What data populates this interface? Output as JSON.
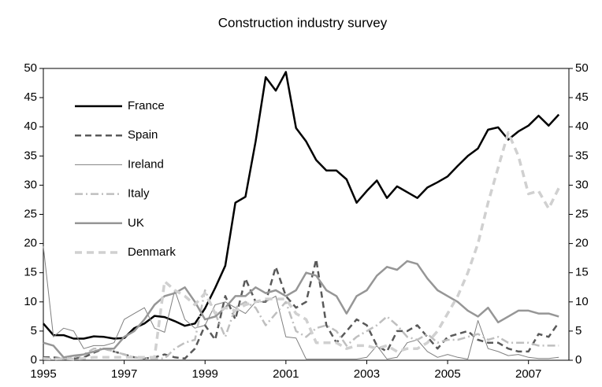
{
  "chart_data": {
    "type": "line",
    "title": "Construction industry survey",
    "x": [
      1995,
      1995.25,
      1995.5,
      1995.75,
      1996,
      1996.25,
      1996.5,
      1996.75,
      1997,
      1997.25,
      1997.5,
      1997.75,
      1998,
      1998.25,
      1998.5,
      1998.75,
      1999,
      1999.25,
      1999.5,
      1999.75,
      2000,
      2000.25,
      2000.5,
      2000.75,
      2001,
      2001.25,
      2001.5,
      2001.75,
      2002,
      2002.25,
      2002.5,
      2002.75,
      2003,
      2003.25,
      2003.5,
      2003.75,
      2004,
      2004.25,
      2004.5,
      2004.75,
      2005,
      2005.25,
      2005.5,
      2005.75,
      2006,
      2006.25,
      2006.5,
      2006.75,
      2007,
      2007.25,
      2007.5,
      2007.75
    ],
    "series": [
      {
        "name": "France",
        "color": "#000000",
        "width": 2.5,
        "dash": "none",
        "values": [
          6.3,
          4.3,
          4.3,
          3.7,
          3.7,
          4.1,
          4.0,
          3.7,
          3.8,
          5.5,
          6.3,
          7.6,
          7.4,
          6.7,
          5.9,
          6.3,
          8.9,
          12.4,
          16.2,
          27,
          28,
          37.5,
          48.5,
          46.2,
          49.4,
          39.8,
          37.5,
          34.3,
          32.5,
          32.5,
          31,
          27,
          29,
          30.8,
          27.8,
          29.8,
          28.8,
          27.8,
          29.6,
          30.5,
          31.5,
          33.3,
          35,
          36.3,
          39.5,
          39.9,
          37.8,
          39.2,
          40.2,
          41.9,
          40.2,
          42.1
        ]
      },
      {
        "name": "Spain",
        "color": "#595959",
        "width": 2.5,
        "dash": "8,5",
        "values": [
          0.5,
          0.5,
          0.3,
          0.3,
          0.5,
          1.3,
          2,
          1.5,
          1,
          0.5,
          0.3,
          0.5,
          1,
          0.5,
          0.3,
          2,
          6,
          3.5,
          11,
          7,
          14,
          10,
          10,
          16,
          11,
          9,
          10,
          17.3,
          6,
          3,
          5,
          7,
          6,
          2.5,
          1.5,
          5,
          5,
          6,
          4,
          2,
          4,
          4.5,
          5,
          3.5,
          3,
          3,
          2,
          1.5,
          1.5,
          4.5,
          4,
          6.5
        ]
      },
      {
        "name": "Ireland",
        "color": "#7f7f7f",
        "width": 1,
        "dash": "none",
        "values": [
          19.5,
          4,
          5.5,
          5,
          2,
          2.5,
          2.5,
          3,
          7,
          8,
          9,
          5.5,
          4.8,
          12,
          7,
          5.5,
          6,
          9.5,
          10,
          9,
          8,
          10,
          10,
          11,
          4,
          3.8,
          0.2,
          0.2,
          0.2,
          0.2,
          0.2,
          0.2,
          0.5,
          2.5,
          0.2,
          0.5,
          3,
          3.5,
          1.5,
          0.5,
          1,
          0.5,
          0.2,
          6.8,
          2,
          1.5,
          0.8,
          1,
          0.5,
          0.3,
          0.3,
          0.5
        ]
      },
      {
        "name": "Italy",
        "color": "#bfbfbf",
        "width": 2.5,
        "dash": "10,4,2,4",
        "values": [
          0.2,
          0.2,
          0.2,
          0.5,
          1,
          2,
          2,
          1.5,
          1,
          0.5,
          0.3,
          0.3,
          0.3,
          2,
          3,
          3.5,
          12,
          8,
          4,
          9,
          10,
          9,
          6,
          8,
          10,
          5,
          4,
          5.5,
          6,
          5,
          2.5,
          4,
          5,
          6,
          7.5,
          6,
          4,
          3.5,
          4.5,
          3,
          3.5,
          3.5,
          4,
          4.5,
          3.5,
          4,
          3,
          3,
          3,
          2.5,
          2.5,
          2.5
        ]
      },
      {
        "name": "UK",
        "color": "#969696",
        "width": 2.5,
        "dash": "none",
        "values": [
          3,
          2.5,
          0.5,
          0.8,
          1,
          1.5,
          2,
          2,
          4,
          5,
          7,
          9.5,
          11,
          11.5,
          12.5,
          10,
          7,
          7.5,
          9,
          11,
          11,
          12.5,
          11.5,
          12,
          11,
          12,
          15,
          14.5,
          12,
          11,
          8,
          11,
          12,
          14.5,
          16,
          15.5,
          17,
          16.5,
          14,
          12,
          11,
          10,
          8.5,
          7.5,
          9,
          6.5,
          7.5,
          8.5,
          8.5,
          8,
          8,
          7.5
        ]
      },
      {
        "name": "Denmark",
        "color": "#d0d0d0",
        "width": 3.5,
        "dash": "9,6",
        "values": [
          0.3,
          0.2,
          0.3,
          0.2,
          0.3,
          0.5,
          0.5,
          0.5,
          0.5,
          0.5,
          0.5,
          0.5,
          13.5,
          12,
          11,
          9.5,
          11.5,
          8,
          9,
          8.5,
          9.5,
          10,
          10.5,
          10.5,
          10.5,
          8,
          7,
          3,
          3,
          3,
          2,
          2.5,
          2.5,
          2,
          2.5,
          1.5,
          2,
          2,
          3,
          5,
          8,
          11,
          15,
          20,
          27,
          33,
          39,
          35,
          28.5,
          29,
          26,
          29.5
        ]
      }
    ],
    "xlim": [
      1995,
      2008
    ],
    "xticks": [
      1995,
      1997,
      1999,
      2001,
      2003,
      2005,
      2007
    ],
    "ylim": [
      0,
      50
    ],
    "yticks": [
      0,
      5,
      10,
      15,
      20,
      25,
      30,
      35,
      40,
      45,
      50
    ],
    "y2lim": [
      0,
      50
    ],
    "y2ticks": [
      0,
      5,
      10,
      15,
      20,
      25,
      30,
      35,
      40,
      45,
      50
    ],
    "legend": "upper-left"
  }
}
